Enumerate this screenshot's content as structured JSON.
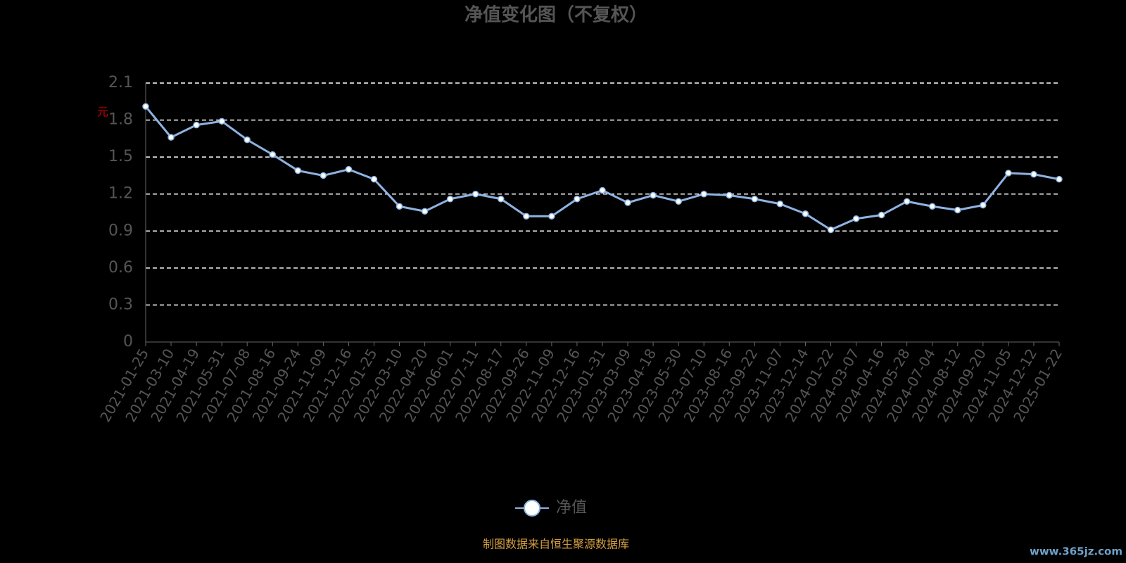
{
  "chart_data": {
    "type": "line",
    "title": "净值变化图（不复权）",
    "y_label": "元",
    "source": "制图数据来自恒生聚源数据库",
    "watermark": "www.365jz.com",
    "categories": [
      "2021-01-25",
      "2021-03-10",
      "2021-04-19",
      "2021-05-31",
      "2021-07-08",
      "2021-08-16",
      "2021-09-24",
      "2021-11-09",
      "2021-12-16",
      "2022-01-25",
      "2022-03-10",
      "2022-04-20",
      "2022-06-01",
      "2022-07-11",
      "2022-08-17",
      "2022-09-26",
      "2022-11-09",
      "2022-12-16",
      "2023-01-31",
      "2023-03-09",
      "2023-04-18",
      "2023-05-30",
      "2023-07-10",
      "2023-08-16",
      "2023-09-22",
      "2023-11-07",
      "2023-12-14",
      "2024-01-22",
      "2024-03-07",
      "2024-04-16",
      "2024-05-28",
      "2024-07-04",
      "2024-08-12",
      "2024-09-20",
      "2024-11-05",
      "2024-12-12",
      "2025-01-22"
    ],
    "series": [
      {
        "name": "净值",
        "color": "#8db3e2",
        "values": [
          1.91,
          1.66,
          1.76,
          1.79,
          1.64,
          1.52,
          1.39,
          1.35,
          1.4,
          1.32,
          1.1,
          1.06,
          1.16,
          1.2,
          1.16,
          1.02,
          1.02,
          1.16,
          1.23,
          1.13,
          1.19,
          1.14,
          1.2,
          1.19,
          1.16,
          1.12,
          1.04,
          0.91,
          1.0,
          1.03,
          1.14,
          1.1,
          1.07,
          1.11,
          1.37,
          1.36,
          1.32
        ]
      }
    ],
    "ylim": [
      0,
      2.1
    ],
    "yticks": [
      0,
      0.3,
      0.6,
      0.9,
      1.2,
      1.5,
      1.8,
      2.1
    ],
    "grid": true
  }
}
